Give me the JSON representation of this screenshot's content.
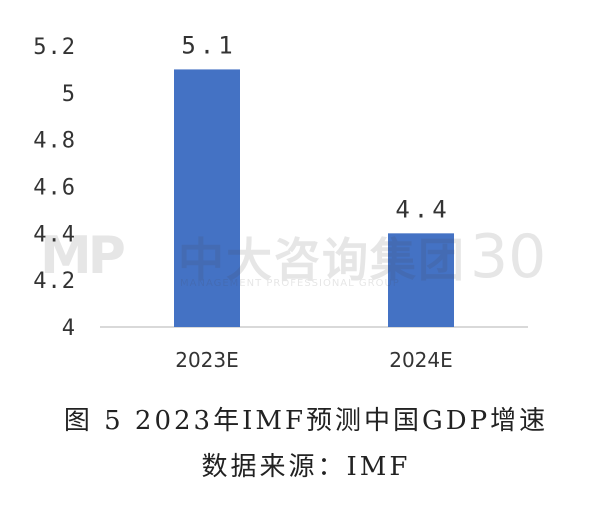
{
  "chart_data": {
    "type": "bar",
    "categories": [
      "2023E",
      "2024E"
    ],
    "values": [
      5.1,
      4.4
    ],
    "data_labels": [
      "5.1",
      "4.4"
    ],
    "ylim": [
      4,
      5.2
    ],
    "yticks": [
      "4",
      "4.2",
      "4.4",
      "4.6",
      "4.8",
      "5",
      "5.2"
    ],
    "ytick_values": [
      4,
      4.2,
      4.4,
      4.6,
      4.8,
      5,
      5.2
    ],
    "bar_color": "#4472C4",
    "axis_color": "#D9D9D9",
    "grid": false,
    "legend": "none"
  },
  "watermark": {
    "logo": "MP",
    "name": "中大咨询集团",
    "subtitle": "MANAGEMENT PROFESSIONAL GROUP",
    "anniversary": "30"
  },
  "caption": {
    "title": "图 5 2023年IMF预测中国GDP增速",
    "source": "数据来源：IMF"
  }
}
